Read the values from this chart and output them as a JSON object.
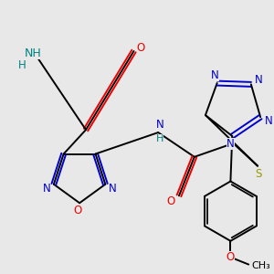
{
  "bg_color": "#e8e8e8",
  "C": "#000000",
  "N": "#0000cc",
  "O": "#ee0000",
  "S": "#999900",
  "H": "#008080",
  "lw": 1.4,
  "fs": 8.5
}
